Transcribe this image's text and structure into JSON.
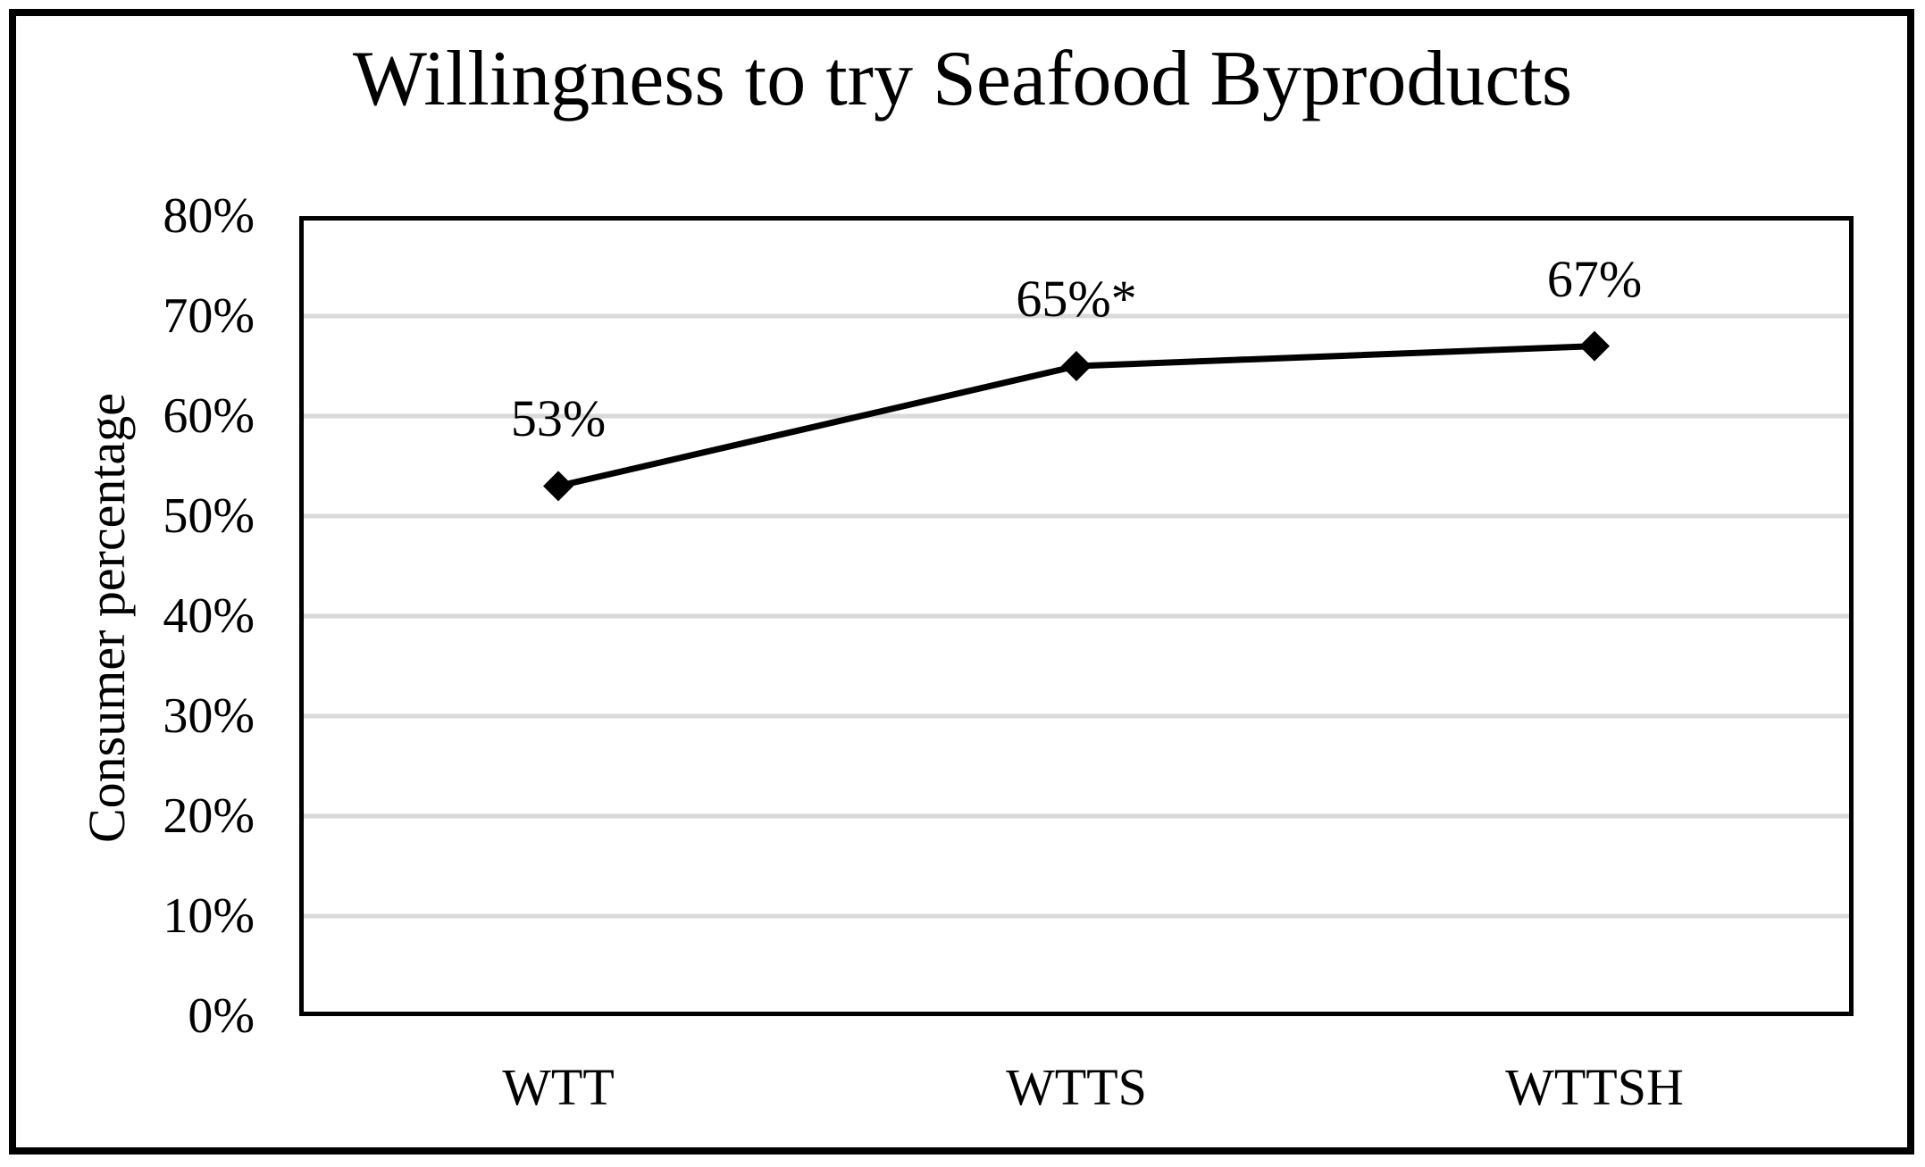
{
  "figure": {
    "title": "Willingness to try Seafood Byproducts",
    "ylabel": "Consumer percentage"
  },
  "chart_data": {
    "type": "line",
    "title": "Willingness to try Seafood Byproducts",
    "categories": [
      "WTT",
      "WTTS",
      "WTTSH"
    ],
    "values": [
      53,
      65,
      67
    ],
    "point_labels": [
      "53%",
      "65%*",
      "67%"
    ],
    "xlabel": "",
    "ylabel": "Consumer percentage",
    "ylim": [
      0,
      80
    ],
    "ytick_step": 10,
    "ytick_labels": [
      "0%",
      "10%",
      "20%",
      "30%",
      "40%",
      "50%",
      "60%",
      "70%",
      "80%"
    ],
    "grid": true,
    "legend": "none",
    "marker": "diamond",
    "colors": {
      "line": "#000000",
      "marker": "#000000",
      "gridline": "#d9d9d9",
      "plot_border": "#000000",
      "figure_border": "#000000",
      "text": "#000000",
      "background": "#ffffff"
    }
  }
}
